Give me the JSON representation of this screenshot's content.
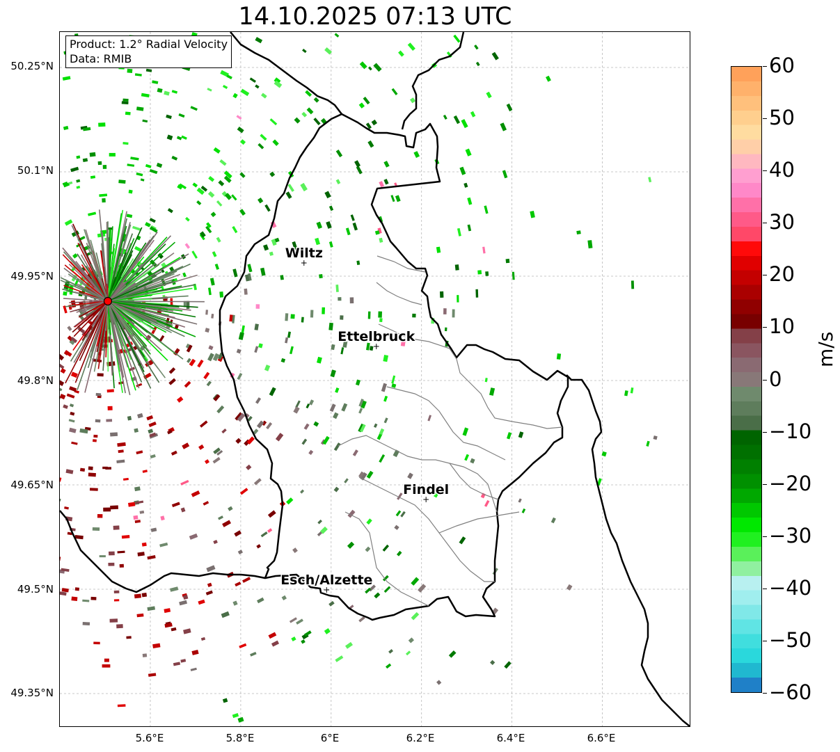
{
  "title": "14.10.2025 07:13 UTC",
  "info_box": {
    "product": "Product: 1.2° Radial Velocity",
    "source": "Data: RMIB"
  },
  "axes": {
    "lat_ticks": [
      "50.25°N",
      "50.1°N",
      "49.95°N",
      "49.8°N",
      "49.65°N",
      "49.5°N",
      "49.35°N"
    ],
    "lon_ticks": [
      "5.6°E",
      "5.8°E",
      "6°E",
      "6.2°E",
      "6.4°E",
      "6.6°E"
    ],
    "grid": true
  },
  "colorbar": {
    "unit": "m/s",
    "min": -60,
    "max": 60,
    "tick_labels": [
      "60",
      "50",
      "40",
      "30",
      "20",
      "10",
      "0",
      "−10",
      "−20",
      "−30",
      "−40",
      "−50",
      "−60"
    ],
    "colors_top_to_bottom": [
      "#ffa15a",
      "#ffb16b",
      "#ffc07c",
      "#ffcf8e",
      "#ffdca0",
      "#ffcfa8",
      "#ffb8c0",
      "#ff9fd0",
      "#ff88c8",
      "#ff70a8",
      "#ff5a88",
      "#ff4868",
      "#ff0a0a",
      "#e00000",
      "#c40000",
      "#aa0000",
      "#900000",
      "#780000",
      "#844048",
      "#8a5560",
      "#8a6a72",
      "#887878",
      "#6f8a6d",
      "#5e7d5c",
      "#4a6e48",
      "#006400",
      "#007000",
      "#008000",
      "#009000",
      "#00a800",
      "#00c800",
      "#00e800",
      "#20f020",
      "#5af05a",
      "#90f0a0",
      "#b8f0f0",
      "#a0eeee",
      "#80e8e8",
      "#60e4e4",
      "#40dede",
      "#2ad8dc",
      "#20b8d0",
      "#1f80c8"
    ],
    "accent_colors": {
      "approaching_strong": "#00e800",
      "approaching": "#006400",
      "zero": "#887878",
      "receding": "#780000",
      "radar_marker": "#ff0000"
    }
  },
  "cities": [
    {
      "name": "Wiltz",
      "lon": 5.94,
      "lat": 49.97
    },
    {
      "name": "Ettelbruck",
      "lon": 6.1,
      "lat": 49.85
    },
    {
      "name": "Findel",
      "lon": 6.21,
      "lat": 49.63
    },
    {
      "name": "Esch/Alzette",
      "lon": 5.99,
      "lat": 49.5
    }
  ],
  "radar_site": {
    "lon": 5.506,
    "lat": 49.914
  }
}
